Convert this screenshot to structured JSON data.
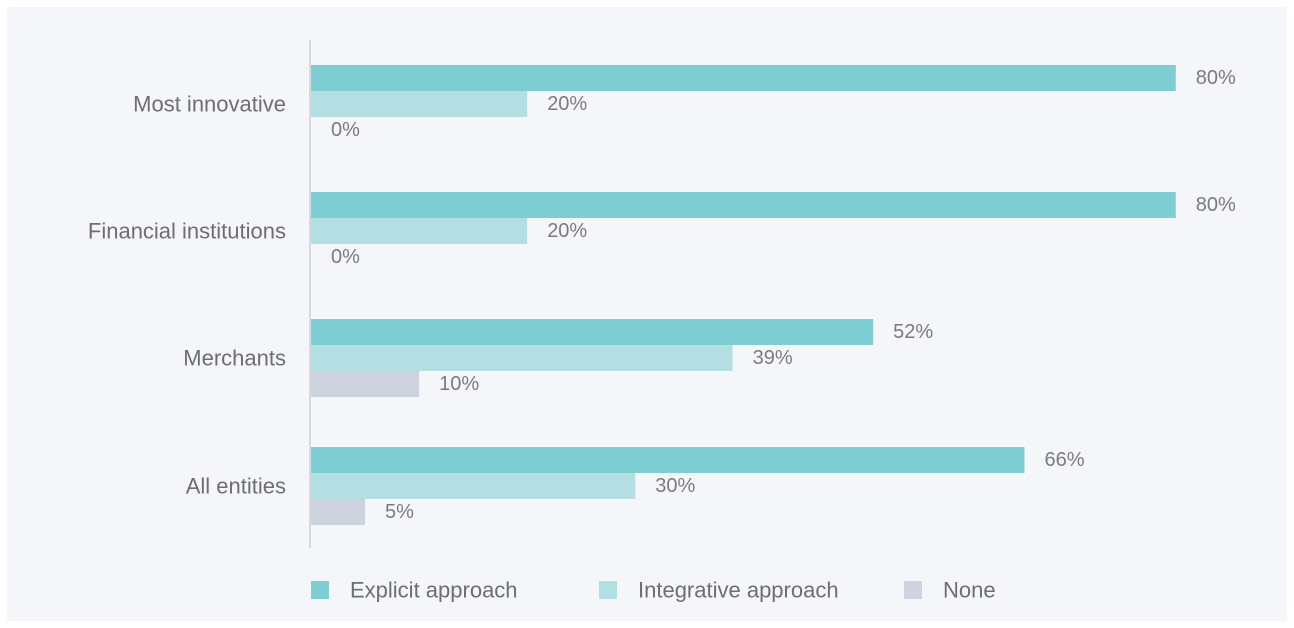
{
  "chart_data": {
    "type": "bar",
    "orientation": "horizontal",
    "categories": [
      "Most innovative",
      "Financial institutions",
      "Merchants",
      "All entities"
    ],
    "series": [
      {
        "name": "Explicit approach",
        "values": [
          80,
          80,
          52,
          66
        ],
        "labels": [
          "80%",
          "80%",
          "52%",
          "66%"
        ],
        "color": "#7ecdd3"
      },
      {
        "name": "Integrative approach",
        "values": [
          20,
          20,
          39,
          30
        ],
        "labels": [
          "20%",
          "20%",
          "39%",
          "30%"
        ],
        "color": "#b3dfe3"
      },
      {
        "name": "None",
        "values": [
          0,
          0,
          10,
          5
        ],
        "labels": [
          "0%",
          "0%",
          "10%",
          "5%"
        ],
        "color": "#cdd3df"
      }
    ],
    "xlim": [
      0,
      100
    ],
    "legend_position": "bottom-left",
    "grid": false
  }
}
